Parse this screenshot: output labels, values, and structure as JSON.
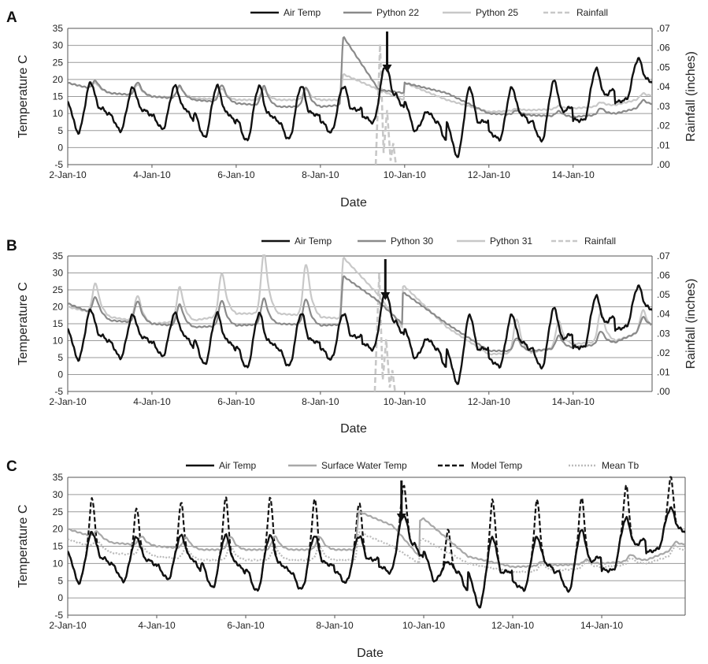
{
  "chart_data": [
    {
      "type": "line",
      "panel_label": "A",
      "xlabel": "Date",
      "ylabel": "Temperature  C",
      "y2label": "Rainfall (inches)",
      "xlim": [
        "2010-01-02",
        "2010-01-15T21:00"
      ],
      "ylim": [
        -5,
        35
      ],
      "y2lim": [
        0,
        0.07
      ],
      "yticks": [
        "-5",
        "0",
        "5",
        "10",
        "15",
        "20",
        "25",
        "30",
        "35"
      ],
      "y2ticks": [
        ".00",
        ".01",
        ".02",
        ".03",
        ".04",
        ".05",
        ".06",
        ".07"
      ],
      "xticks": [
        "2-Jan-10",
        "4-Jan-10",
        "6-Jan-10",
        "8-Jan-10",
        "10-Jan-10",
        "12-Jan-10",
        "14-Jan-10"
      ],
      "xtick_dates": [
        "2010-01-02",
        "2010-01-04",
        "2010-01-06",
        "2010-01-08",
        "2010-01-10",
        "2010-01-12",
        "2010-01-14"
      ],
      "grid": "horizontal",
      "legend_position": "top",
      "arrow_date": "2010-01-09T14:00",
      "air_temp": {
        "min": [
          4.5,
          5,
          5.5,
          3,
          2,
          2.5,
          4.5,
          7.5,
          5,
          -2.5,
          2.5,
          2,
          8,
          14
        ],
        "max": [
          19,
          17.5,
          18,
          18,
          18,
          18,
          18,
          24,
          10.5,
          17.5,
          17.5,
          19.5,
          23,
          26
        ],
        "shift_hours": 0
      },
      "series": [
        {
          "name": "Air Temp",
          "color": "#111111",
          "style": "solid",
          "kind": "air"
        },
        {
          "name": "Python 22",
          "color": "#8a8a8a",
          "style": "solid",
          "kind": "python",
          "base": [
            19,
            16,
            15,
            14,
            13,
            12,
            12,
            13,
            19,
            16,
            10,
            9.5,
            9,
            10,
            13
          ],
          "amp": [
            2,
            3,
            3,
            4,
            4.5,
            4.5,
            4.5,
            4,
            0,
            0,
            1,
            1.2,
            1.5,
            1.5,
            1.5
          ],
          "spike": 32.5
        },
        {
          "name": "Python 25",
          "color": "#c8c8c8",
          "style": "solid",
          "kind": "python",
          "base": [
            19,
            16,
            15,
            14.5,
            14,
            14,
            14,
            14,
            19,
            14,
            10.5,
            11,
            11.5,
            12.5,
            15.5
          ],
          "amp": [
            1.5,
            2.5,
            2.5,
            2.5,
            2.5,
            2.5,
            2.5,
            2.5,
            0,
            0,
            0.5,
            0.7,
            0.9,
            1.1,
            1.2
          ],
          "spike": 21.5
        },
        {
          "name": "Rainfall",
          "color": "#c8c8c8",
          "style": "dashed",
          "kind": "rain",
          "points": [
            [
              "2010-01-09T07:30",
              0
            ],
            [
              "2010-01-09T10:00",
              0.062
            ],
            [
              "2010-01-09T12:00",
              0.006
            ],
            [
              "2010-01-09T14:00",
              0.028
            ],
            [
              "2010-01-09T16:00",
              0.002
            ],
            [
              "2010-01-09T17:30",
              0.011
            ],
            [
              "2010-01-09T19:00",
              0
            ]
          ]
        }
      ]
    },
    {
      "type": "line",
      "panel_label": "B",
      "xlabel": "Date",
      "ylabel": "Temperature  C",
      "y2label": "Rainfall (inches)",
      "xlim": [
        "2010-01-02",
        "2010-01-15T21:00"
      ],
      "ylim": [
        -5,
        35
      ],
      "y2lim": [
        0,
        0.07
      ],
      "yticks": [
        "-5",
        "0",
        "5",
        "10",
        "15",
        "20",
        "25",
        "30",
        "35"
      ],
      "y2ticks": [
        ".00",
        ".01",
        ".02",
        ".03",
        ".04",
        ".05",
        ".06",
        ".07"
      ],
      "xticks": [
        "2-Jan-10",
        "4-Jan-10",
        "6-Jan-10",
        "8-Jan-10",
        "10-Jan-10",
        "12-Jan-10",
        "14-Jan-10"
      ],
      "xtick_dates": [
        "2010-01-02",
        "2010-01-04",
        "2010-01-06",
        "2010-01-08",
        "2010-01-10",
        "2010-01-12",
        "2010-01-14"
      ],
      "grid": "horizontal",
      "legend_position": "top",
      "arrow_date": "2010-01-09T13:00",
      "air_temp": {
        "min": [
          4.5,
          5,
          5.5,
          3,
          2,
          2.5,
          4.5,
          7.5,
          5,
          -2.5,
          2.5,
          2,
          8,
          14
        ],
        "max": [
          19,
          17.5,
          18,
          18,
          18,
          18,
          18,
          24,
          10.5,
          17.5,
          17.5,
          19.5,
          23,
          26
        ],
        "shift_hours": 0
      },
      "series": [
        {
          "name": "Air Temp",
          "color": "#111111",
          "style": "solid",
          "kind": "air"
        },
        {
          "name": "Python 30",
          "color": "#8a8a8a",
          "style": "solid",
          "kind": "python",
          "base": [
            21,
            16,
            15,
            14,
            14.5,
            15,
            14.5,
            15,
            24,
            15,
            7,
            7,
            8,
            9.5,
            15
          ],
          "amp": [
            4,
            5,
            5,
            6,
            6,
            6,
            6,
            5,
            0,
            0,
            3,
            3,
            3,
            3,
            3.5
          ],
          "spike": 29
        },
        {
          "name": "Python 31",
          "color": "#c8c8c8",
          "style": "solid",
          "kind": "python",
          "base": [
            20,
            17,
            15,
            16,
            18,
            18,
            17,
            16,
            26,
            14,
            6,
            6.5,
            9,
            10,
            14
          ],
          "amp": [
            7,
            6,
            8,
            10,
            14,
            12,
            6,
            5,
            0,
            0,
            8,
            6,
            7,
            5,
            4
          ],
          "spike": 34.5
        },
        {
          "name": "Rainfall",
          "color": "#c8c8c8",
          "style": "dashed",
          "kind": "rain",
          "points": [
            [
              "2010-01-09T07:00",
              0
            ],
            [
              "2010-01-09T09:30",
              0.061
            ],
            [
              "2010-01-09T11:30",
              0.006
            ],
            [
              "2010-01-09T13:30",
              0.027
            ],
            [
              "2010-01-09T15:30",
              0.002
            ],
            [
              "2010-01-09T17:00",
              0.011
            ],
            [
              "2010-01-09T18:30",
              0
            ]
          ]
        }
      ]
    },
    {
      "type": "line",
      "panel_label": "C",
      "xlabel": "Date",
      "ylabel": "Temperature  C",
      "xlim": [
        "2010-01-02",
        "2010-01-15T21:00"
      ],
      "ylim": [
        -5,
        35
      ],
      "yticks": [
        "-5",
        "0",
        "5",
        "10",
        "15",
        "20",
        "25",
        "30",
        "35"
      ],
      "xticks": [
        "2-Jan-10",
        "4-Jan-10",
        "6-Jan-10",
        "8-Jan-10",
        "10-Jan-10",
        "12-Jan-10",
        "14-Jan-10"
      ],
      "xtick_dates": [
        "2010-01-02",
        "2010-01-04",
        "2010-01-06",
        "2010-01-08",
        "2010-01-10",
        "2010-01-12",
        "2010-01-14"
      ],
      "grid": "horizontal",
      "legend_position": "top",
      "arrow_date": "2010-01-09T12:00",
      "air_temp": {
        "min": [
          4.5,
          5,
          5.5,
          3,
          2,
          2.5,
          4.5,
          7.5,
          5,
          -2.5,
          2.5,
          2,
          8,
          14
        ],
        "max": [
          19,
          17.5,
          18,
          18,
          18,
          18,
          18,
          24,
          10.5,
          17.5,
          17.5,
          19.5,
          23,
          26
        ],
        "shift_hours": 0
      },
      "series": [
        {
          "name": "Air Temp",
          "color": "#111111",
          "style": "solid",
          "kind": "air"
        },
        {
          "name": "Surface Water Temp",
          "color": "#a8a8a8",
          "style": "solid",
          "kind": "python",
          "base": [
            20,
            16,
            15,
            14,
            14,
            14,
            14,
            14,
            23,
            12,
            9,
            9.5,
            10,
            11,
            16
          ],
          "amp": [
            1.5,
            2,
            2.5,
            3,
            3,
            3,
            3,
            3,
            0,
            0,
            1,
            1,
            1.5,
            1.5,
            1.5
          ],
          "spike": 25
        },
        {
          "name": "Model Temp",
          "color": "#111111",
          "style": "dashed",
          "kind": "model",
          "max": [
            29,
            26,
            27.5,
            29,
            29,
            29,
            28,
            33,
            20,
            28.5,
            28.5,
            29,
            32.5,
            35
          ]
        },
        {
          "name": "Mean Tb",
          "color": "#bbbbbb",
          "style": "dotted",
          "kind": "python",
          "base": [
            17,
            13,
            12,
            11,
            11,
            11,
            11,
            11,
            17,
            10,
            7.5,
            8,
            9,
            10,
            14
          ],
          "amp": [
            2,
            2.5,
            2.5,
            3,
            3,
            3,
            3,
            3,
            0,
            0,
            1.5,
            1.5,
            1.5,
            2,
            2
          ],
          "spike": 19
        }
      ]
    }
  ]
}
